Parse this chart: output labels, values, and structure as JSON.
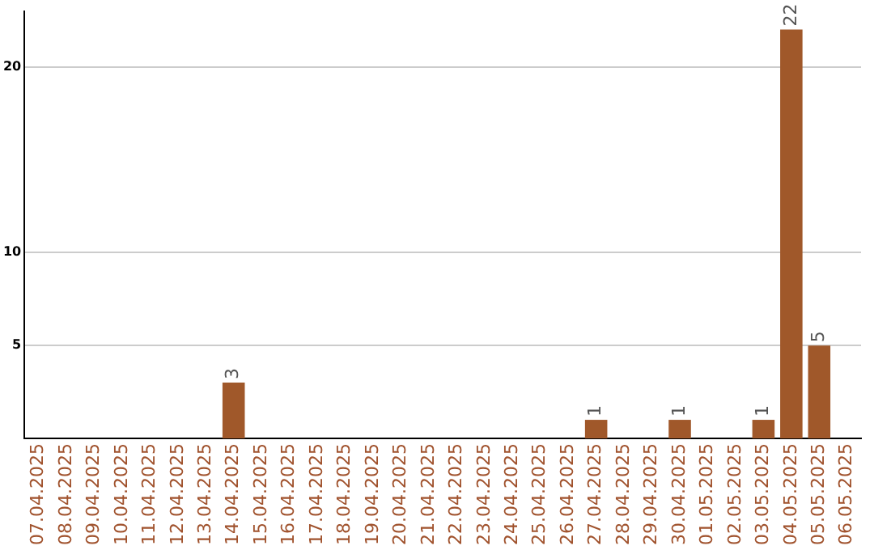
{
  "chart_data": {
    "type": "bar",
    "categories": [
      "07.04.2025",
      "08.04.2025",
      "09.04.2025",
      "10.04.2025",
      "11.04.2025",
      "12.04.2025",
      "13.04.2025",
      "14.04.2025",
      "15.04.2025",
      "16.04.2025",
      "17.04.2025",
      "18.04.2025",
      "19.04.2025",
      "20.04.2025",
      "21.04.2025",
      "22.04.2025",
      "23.04.2025",
      "24.04.2025",
      "25.04.2025",
      "26.04.2025",
      "27.04.2025",
      "28.04.2025",
      "29.04.2025",
      "30.04.2025",
      "01.05.2025",
      "02.05.2025",
      "03.05.2025",
      "04.05.2025",
      "05.05.2025",
      "06.05.2025"
    ],
    "values": [
      0,
      0,
      0,
      0,
      0,
      0,
      0,
      3,
      0,
      0,
      0,
      0,
      0,
      0,
      0,
      0,
      0,
      0,
      0,
      0,
      1,
      0,
      0,
      1,
      0,
      0,
      1,
      22,
      5,
      0
    ],
    "value_labels": [
      null,
      null,
      null,
      null,
      null,
      null,
      null,
      "3",
      null,
      null,
      null,
      null,
      null,
      null,
      null,
      null,
      null,
      null,
      null,
      null,
      "1",
      null,
      null,
      "1",
      null,
      null,
      "1",
      "22",
      "5",
      null
    ],
    "color": "#a0582a",
    "ylim": [
      0,
      23
    ],
    "yticks": [
      5,
      10,
      20
    ],
    "grid": "y"
  }
}
